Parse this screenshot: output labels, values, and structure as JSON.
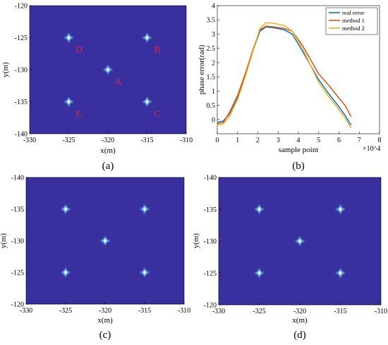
{
  "chart_data": [
    {
      "panel": "a",
      "type": "heatmap",
      "caption": "(a)",
      "xlabel": "x(m)",
      "ylabel": "y(m)",
      "xlim": [
        -330,
        -310
      ],
      "ylim": [
        -140,
        -120
      ],
      "y_direction": "top-to-bottom increasing downward values",
      "xticks": [
        "-330",
        "-325",
        "-320",
        "-315",
        "-310"
      ],
      "yticks": [
        "-120",
        "-125",
        "-130",
        "-135",
        "-140"
      ],
      "background_color": "#3a2f9f",
      "peak_color": "#dff6ff",
      "points": [
        {
          "label": "D",
          "x": -325,
          "y": -125
        },
        {
          "label": "B",
          "x": -315,
          "y": -125
        },
        {
          "label": "A",
          "x": -320,
          "y": -130
        },
        {
          "label": "E",
          "x": -325,
          "y": -135
        },
        {
          "label": "C",
          "x": -315,
          "y": -135
        }
      ]
    },
    {
      "panel": "b",
      "type": "line",
      "caption": "(b)",
      "xlabel": "sample point",
      "ylabel": "phase error(rad)",
      "x_multiplier": "×10^4",
      "xlim": [
        0,
        8
      ],
      "ylim": [
        -0.5,
        4
      ],
      "xticks": [
        "0",
        "1",
        "2",
        "3",
        "4",
        "5",
        "6",
        "7",
        "8"
      ],
      "yticks": [
        "0",
        "0.5",
        "1",
        "1.5",
        "2",
        "2.5",
        "3",
        "3.5",
        "4"
      ],
      "legend_position": "top-right",
      "series": [
        {
          "name": "real error",
          "color": "#0b72bd",
          "x": [
            0,
            0.3,
            0.6,
            1.0,
            1.4,
            1.8,
            2.1,
            2.4,
            2.8,
            3.3,
            3.7,
            4.2,
            4.6,
            5.0,
            5.5,
            6.0,
            6.3,
            6.6
          ],
          "y": [
            -0.1,
            -0.05,
            0.2,
            0.8,
            1.6,
            2.5,
            3.1,
            3.25,
            3.22,
            3.15,
            3.0,
            2.4,
            1.9,
            1.4,
            0.9,
            0.45,
            0.15,
            -0.2
          ]
        },
        {
          "name": "method 1",
          "color": "#d95319",
          "x": [
            0,
            0.3,
            0.6,
            1.0,
            1.4,
            1.8,
            2.1,
            2.4,
            2.8,
            3.3,
            3.7,
            4.2,
            4.6,
            5.0,
            5.5,
            6.0,
            6.3,
            6.6
          ],
          "y": [
            -0.15,
            -0.1,
            0.25,
            0.85,
            1.65,
            2.55,
            3.15,
            3.28,
            3.25,
            3.2,
            3.1,
            2.6,
            2.1,
            1.6,
            1.2,
            0.75,
            0.5,
            0.1
          ]
        },
        {
          "name": "method 2",
          "color": "#edb120",
          "x": [
            0,
            0.3,
            0.6,
            1.0,
            1.4,
            1.8,
            2.1,
            2.4,
            2.8,
            3.3,
            3.7,
            4.2,
            4.6,
            5.0,
            5.5,
            6.0,
            6.3,
            6.6
          ],
          "y": [
            -0.2,
            -0.15,
            0.1,
            0.7,
            1.55,
            2.5,
            3.2,
            3.4,
            3.38,
            3.3,
            3.1,
            2.5,
            1.9,
            1.3,
            0.8,
            0.35,
            0.05,
            -0.3
          ]
        }
      ]
    },
    {
      "panel": "c",
      "type": "heatmap",
      "caption": "(c)",
      "xlabel": "x(m)",
      "ylabel": "y(m)",
      "xlim": [
        -330,
        -310
      ],
      "ylim": [
        -140,
        -120
      ],
      "xticks": [
        "-330",
        "-325",
        "-320",
        "-315",
        "-310"
      ],
      "yticks": [
        "-140",
        "-135",
        "-130",
        "-125",
        "-120"
      ],
      "background_color": "#3a2f9f",
      "peak_color": "#dff6ff",
      "points": [
        {
          "x": -325,
          "y": -135
        },
        {
          "x": -315,
          "y": -135
        },
        {
          "x": -320,
          "y": -130
        },
        {
          "x": -325,
          "y": -125
        },
        {
          "x": -315,
          "y": -125
        }
      ]
    },
    {
      "panel": "d",
      "type": "heatmap",
      "caption": "(d)",
      "xlabel": "x(m)",
      "ylabel": "y(m)",
      "xlim": [
        -330,
        -310
      ],
      "ylim": [
        -140,
        -120
      ],
      "xticks": [
        "-330",
        "-325",
        "-320",
        "-315",
        "-310"
      ],
      "yticks": [
        "-140",
        "-135",
        "-130",
        "-125",
        "-120"
      ],
      "background_color": "#3a2f9f",
      "peak_color": "#dff6ff",
      "points": [
        {
          "x": -325,
          "y": -135
        },
        {
          "x": -315,
          "y": -135
        },
        {
          "x": -320,
          "y": -130
        },
        {
          "x": -325,
          "y": -125
        },
        {
          "x": -315,
          "y": -125
        }
      ]
    }
  ]
}
